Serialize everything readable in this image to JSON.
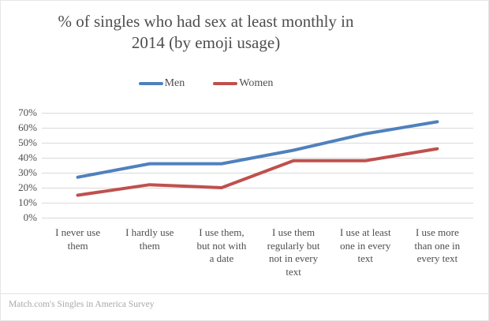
{
  "page": {
    "source_caption": "Match.com's Singles in America Survey"
  },
  "chart_data": {
    "type": "line",
    "title": "% of singles who had sex at least monthly in 2014 (by emoji usage)",
    "title_lines": [
      "% of singles who had sex at least monthly in",
      "2014 (by emoji usage)"
    ],
    "categories": [
      "I never use them",
      "I hardly use them",
      "I use them, but not with a date",
      "I use them regularly but not in every text",
      "I use at least one in every text",
      "I use more than one in every text"
    ],
    "category_label_lines": [
      [
        "I never use",
        "them"
      ],
      [
        "I hardly use",
        "them"
      ],
      [
        "I use them,",
        "but not with",
        "a date"
      ],
      [
        "I use them",
        "regularly but",
        "not in every",
        "text"
      ],
      [
        "I use at least",
        "one in every",
        "text"
      ],
      [
        "I use more",
        "than one in",
        "every text"
      ]
    ],
    "series": [
      {
        "name": "Men",
        "color": "#4F81BD",
        "values": [
          27,
          36,
          36,
          45,
          56,
          64
        ]
      },
      {
        "name": "Women",
        "color": "#C0504D",
        "values": [
          15,
          22,
          20,
          38,
          38,
          46
        ]
      }
    ],
    "xlabel": "",
    "ylabel": "",
    "ylim": [
      0,
      70
    ],
    "ytick_step": 10,
    "ytick_labels": [
      "0%",
      "10%",
      "20%",
      "30%",
      "40%",
      "50%",
      "60%",
      "70%"
    ],
    "grid": "horizontal-only",
    "legend_position": "top-center"
  },
  "style": {
    "text_color": "#4e4e4e",
    "grid_color": "#d9d9d9",
    "line_width": 4,
    "divider_color": "#e3e3e3",
    "caption_color": "#a8a8a8",
    "background": "#ffffff"
  }
}
